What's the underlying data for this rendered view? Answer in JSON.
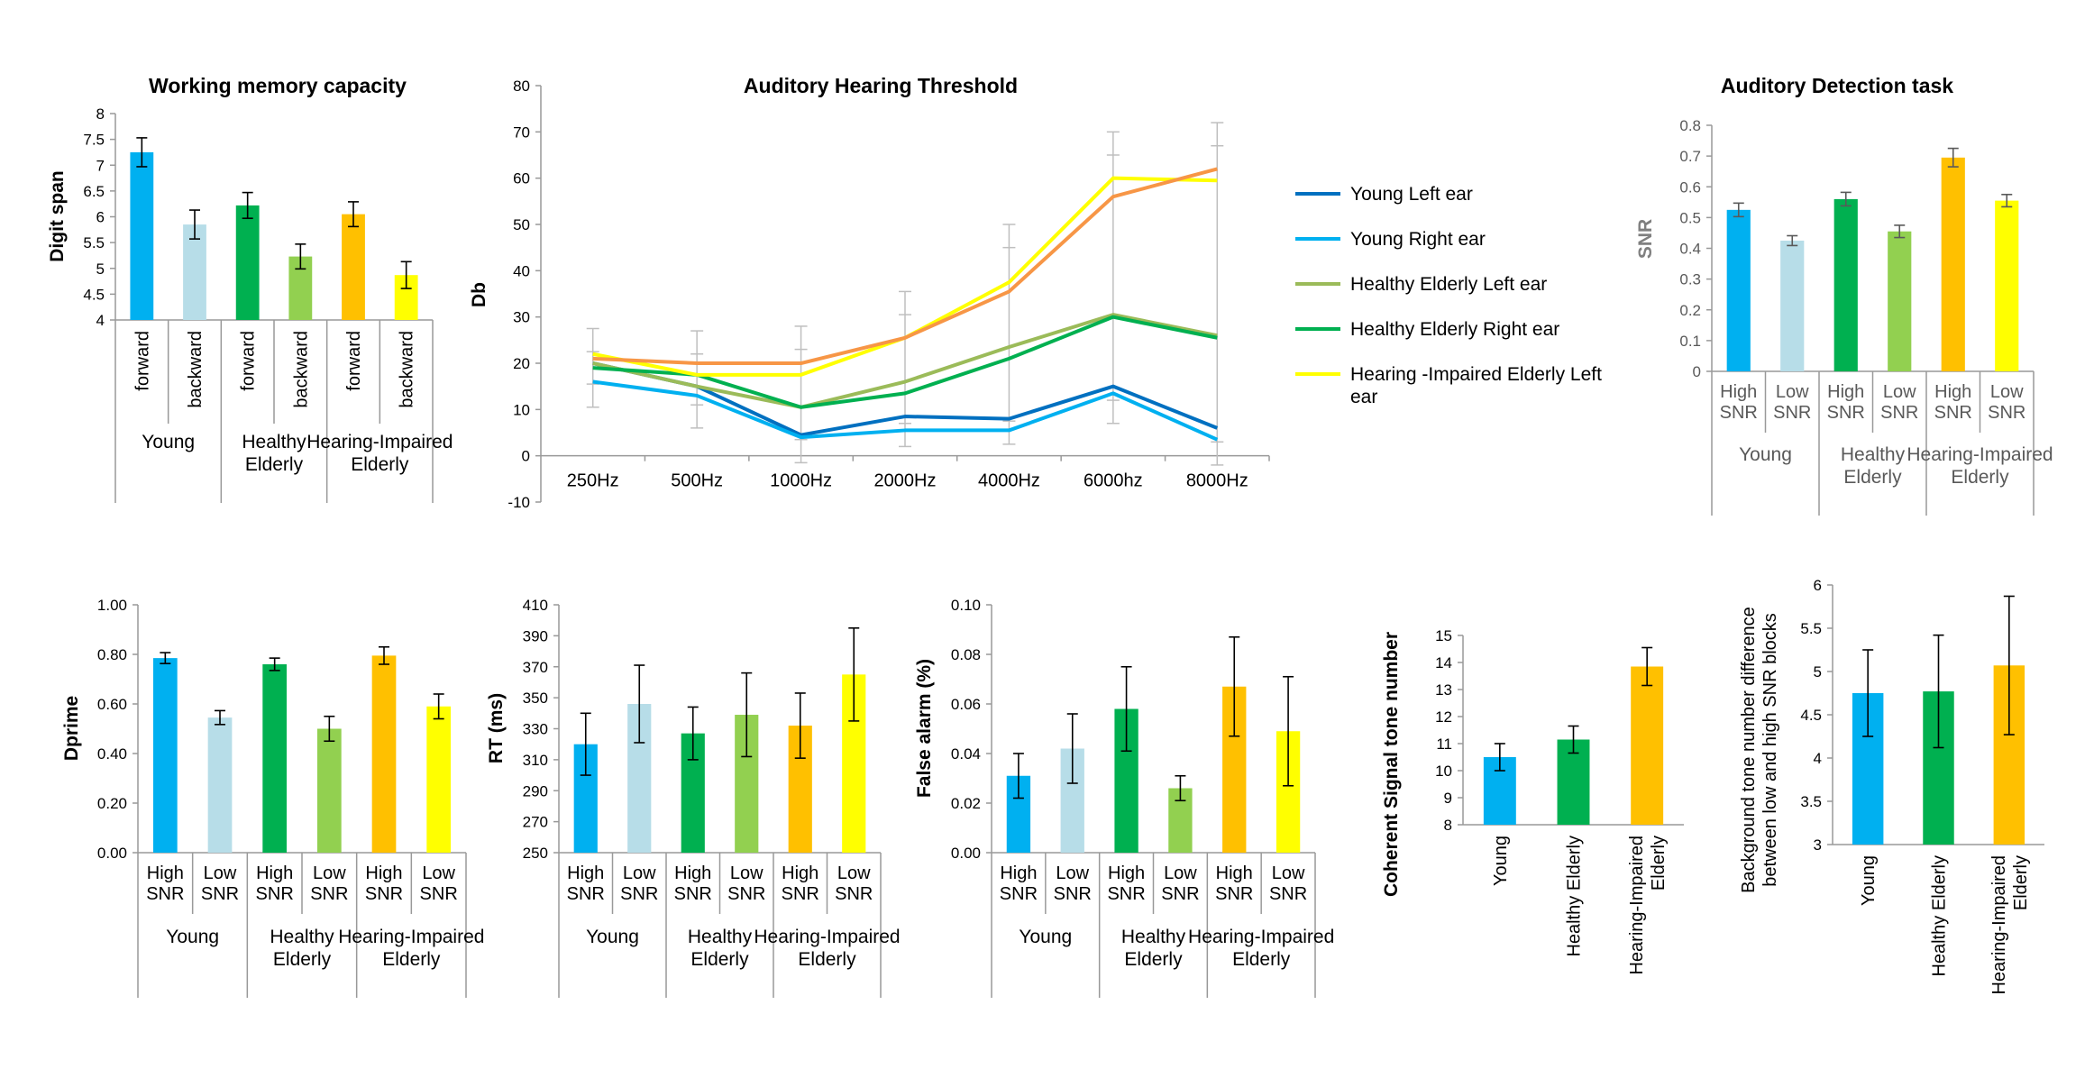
{
  "colors": {
    "young_high": "#00b0f0",
    "young_low": "#b7dde8",
    "healthy_high": "#00b050",
    "healthy_low": "#92d050",
    "hi_high": "#ffc000",
    "hi_low": "#ffff00",
    "young_left": "#0070c0",
    "young_right": "#00b0f0",
    "healthy_left": "#9bbb59",
    "healthy_right": "#00b050",
    "hi_left": "#ffff00",
    "hi_right": "#f79646",
    "axis": "#999999",
    "error": "#000000",
    "error_gray": "#bfbfbf"
  },
  "chart_data": [
    {
      "id": "wm",
      "type": "bar",
      "title": "Working memory capacity",
      "ylabel": "Digit span",
      "ylim": [
        4,
        8
      ],
      "yticks": [
        "4",
        "4.5",
        "5",
        "5.5",
        "6",
        "6.5",
        "7",
        "7.5",
        "8"
      ],
      "categories": [
        "forward",
        "backward",
        "forward",
        "backward",
        "forward",
        "backward"
      ],
      "groups": [
        "Young",
        "Healthy Elderly",
        "Hearing-Impaired Elderly"
      ],
      "values": [
        7.25,
        5.85,
        6.22,
        5.23,
        6.05,
        4.87
      ],
      "errors": [
        0.28,
        0.28,
        0.25,
        0.24,
        0.24,
        0.26
      ]
    },
    {
      "id": "aht",
      "type": "line",
      "title": "Auditory Hearing Threshold",
      "ylabel": "Db",
      "ylim": [
        -10,
        80
      ],
      "yticks": [
        "-10",
        "0",
        "10",
        "20",
        "30",
        "40",
        "50",
        "60",
        "70",
        "80"
      ],
      "x": [
        "250Hz",
        "500Hz",
        "1000Hz",
        "2000Hz",
        "4000Hz",
        "6000hz",
        "8000Hz"
      ],
      "series": [
        {
          "name": "Young Left ear",
          "values": [
            20,
            15,
            4.5,
            8.5,
            8,
            15,
            6
          ]
        },
        {
          "name": "Young Right ear",
          "values": [
            16,
            13,
            4,
            5.5,
            5.5,
            13.5,
            3.5
          ]
        },
        {
          "name": "Healthy Elderly Left ear",
          "values": [
            20,
            15,
            10.5,
            16,
            23.5,
            30.5,
            26
          ]
        },
        {
          "name": "Healthy Elderly Right ear",
          "values": [
            19,
            17.5,
            10.5,
            13.5,
            21,
            30,
            25.5
          ]
        },
        {
          "name": "Hearing -Impaired Elderly Left ear",
          "values": [
            22,
            17.5,
            17.5,
            25.5,
            37.5,
            60,
            59.5
          ]
        },
        {
          "name": "",
          "values": [
            21,
            20,
            20,
            25.5,
            35.5,
            56,
            62
          ]
        }
      ],
      "errors_up": [
        27.5,
        27,
        28,
        35.5,
        50,
        70,
        72
      ],
      "errors_low": [
        10.5,
        6,
        -1.5,
        2,
        2.5,
        7,
        -2
      ]
    },
    {
      "id": "adt",
      "type": "bar",
      "title": "Auditory Detection task",
      "ylabel": "SNR",
      "ylim": [
        0,
        0.8
      ],
      "yticks": [
        "0",
        "0.1",
        "0.2",
        "0.3",
        "0.4",
        "0.5",
        "0.6",
        "0.7",
        "0.8"
      ],
      "categories": [
        "High SNR",
        "Low SNR",
        "High SNR",
        "Low SNR",
        "High SNR",
        "Low SNR"
      ],
      "groups": [
        "Young",
        "Healthy Elderly",
        "Hearing-Impaired Elderly"
      ],
      "values": [
        0.525,
        0.425,
        0.56,
        0.455,
        0.695,
        0.555
      ],
      "errors": [
        0.022,
        0.016,
        0.022,
        0.02,
        0.03,
        0.02
      ]
    },
    {
      "id": "dp",
      "type": "bar",
      "ylabel": "Dprime",
      "ylim": [
        0,
        1
      ],
      "yticks": [
        "0.00",
        "0.20",
        "0.40",
        "0.60",
        "0.80",
        "1.00"
      ],
      "categories": [
        "High SNR",
        "Low SNR",
        "High SNR",
        "Low SNR",
        "High SNR",
        "Low SNR"
      ],
      "groups": [
        "Young",
        "Healthy Elderly",
        "Hearing-Impaired Elderly"
      ],
      "values": [
        0.785,
        0.545,
        0.76,
        0.5,
        0.795,
        0.59
      ],
      "errors": [
        0.022,
        0.028,
        0.025,
        0.05,
        0.035,
        0.05
      ]
    },
    {
      "id": "rt",
      "type": "bar",
      "ylabel": "RT (ms)",
      "ylim": [
        250,
        410
      ],
      "yticks": [
        "250",
        "270",
        "290",
        "310",
        "330",
        "350",
        "370",
        "390",
        "410"
      ],
      "categories": [
        "High SNR",
        "Low SNR",
        "High SNR",
        "Low SNR",
        "High SNR",
        "Low SNR"
      ],
      "groups": [
        "Young",
        "Healthy Elderly",
        "Hearing-Impaired Elderly"
      ],
      "values": [
        320,
        346,
        327,
        339,
        332,
        365
      ],
      "errors": [
        20,
        25,
        17,
        27,
        21,
        30
      ]
    },
    {
      "id": "fa",
      "type": "bar",
      "ylabel": "False alarm (%)",
      "ylim": [
        0,
        0.1
      ],
      "yticks": [
        "0.00",
        "0.02",
        "0.04",
        "0.06",
        "0.08",
        "0.10"
      ],
      "categories": [
        "High SNR",
        "Low SNR",
        "High SNR",
        "Low SNR",
        "High SNR",
        "Low SNR"
      ],
      "groups": [
        "Young",
        "Healthy Elderly",
        "Hearing-Impaired Elderly"
      ],
      "values": [
        0.031,
        0.042,
        0.058,
        0.026,
        0.067,
        0.049
      ],
      "errors": [
        0.009,
        0.014,
        0.017,
        0.005,
        0.02,
        0.022
      ]
    },
    {
      "id": "cs",
      "type": "bar",
      "ylabel": "Coherent Signal tone number",
      "ylim": [
        8,
        15
      ],
      "yticks": [
        "8",
        "9",
        "10",
        "11",
        "12",
        "13",
        "14",
        "15"
      ],
      "categories": [
        "Young",
        "Healthy Elderly",
        "Hearing-Impaired Elderly"
      ],
      "values": [
        10.5,
        11.15,
        13.85
      ],
      "errors": [
        0.5,
        0.5,
        0.7
      ]
    },
    {
      "id": "bg",
      "type": "bar",
      "ylabel": "Background tone number difference between low and  high SNR blocks",
      "ylim": [
        3,
        6
      ],
      "yticks": [
        "3",
        "3.5",
        "4",
        "4.5",
        "5",
        "5.5",
        "6"
      ],
      "categories": [
        "Young",
        "Healthy Elderly",
        "Hearing-Impaired Elderly"
      ],
      "values": [
        4.75,
        4.77,
        5.07
      ],
      "errors": [
        0.5,
        0.65,
        0.8
      ]
    }
  ]
}
